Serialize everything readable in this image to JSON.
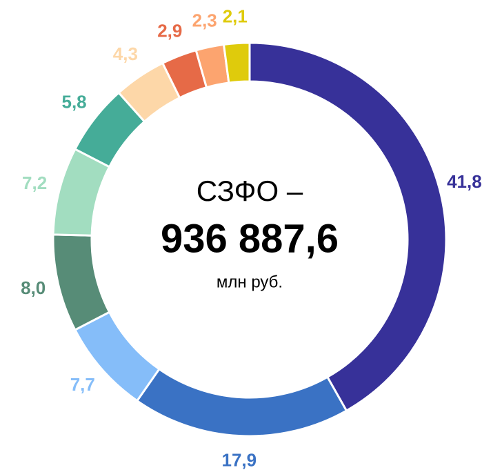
{
  "chart_data": {
    "type": "donut",
    "center_text": [
      "СЗФО –",
      "936 887,6",
      "млн руб."
    ],
    "values": [
      41.8,
      17.9,
      7.7,
      8.0,
      7.2,
      5.8,
      4.3,
      2.9,
      2.3,
      2.1
    ],
    "value_labels": [
      "41,8",
      "17,9",
      "7,7",
      "8,0",
      "7,2",
      "5,8",
      "4,3",
      "2,9",
      "2,3",
      "2,1"
    ],
    "colors": [
      "#373199",
      "#3a72c4",
      "#85bdf9",
      "#578c77",
      "#a2ddc0",
      "#45ac98",
      "#fdd7a8",
      "#e66a47",
      "#fca46f",
      "#dfcb0c"
    ]
  }
}
